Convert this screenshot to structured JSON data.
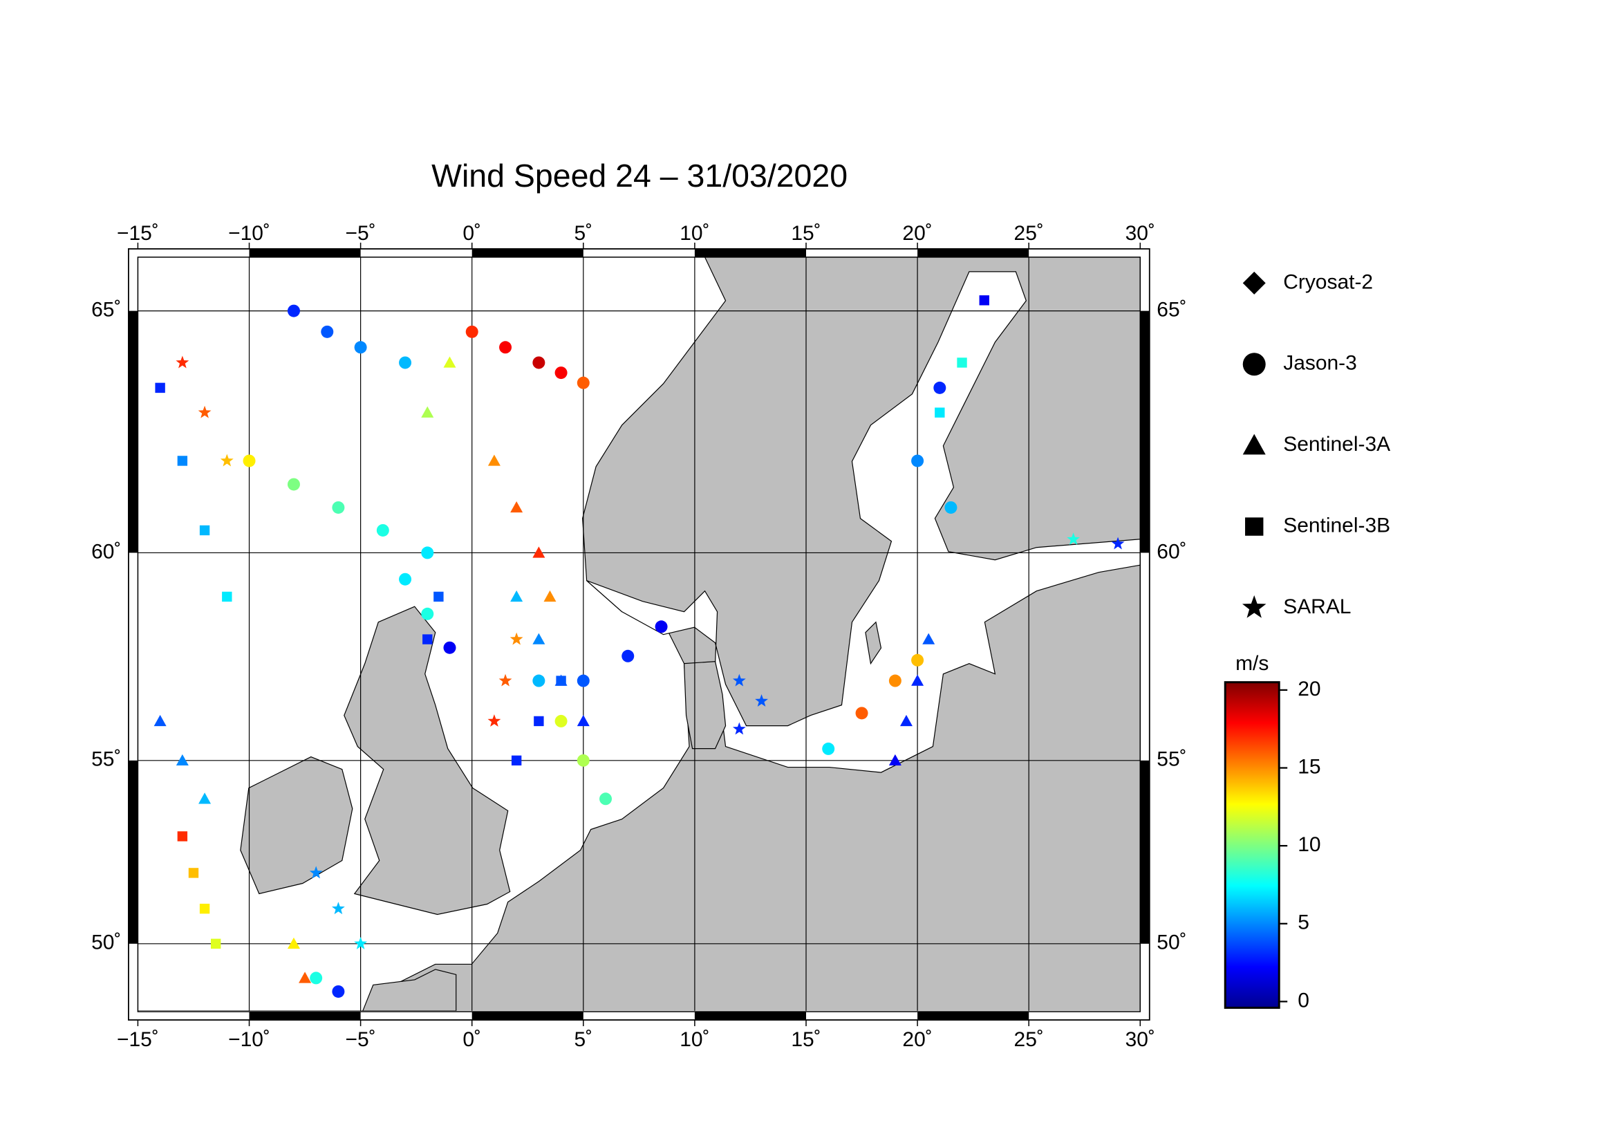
{
  "chart_data": {
    "type": "track-map",
    "title": "Wind Speed 24 – 31/03/2020",
    "projection": "mercator",
    "xlim": [
      -15,
      30
    ],
    "ylim": [
      48,
      66
    ],
    "xticks": [
      {
        "value": -15,
        "label": "−15˚"
      },
      {
        "value": -10,
        "label": "−10˚"
      },
      {
        "value": -5,
        "label": "−5˚"
      },
      {
        "value": 0,
        "label": "0˚"
      },
      {
        "value": 5,
        "label": "5˚"
      },
      {
        "value": 10,
        "label": "10˚"
      },
      {
        "value": 15,
        "label": "15˚"
      },
      {
        "value": 20,
        "label": "20˚"
      },
      {
        "value": 25,
        "label": "25˚"
      },
      {
        "value": 30,
        "label": "30˚"
      }
    ],
    "yticks": [
      {
        "value": 50,
        "label": "50˚"
      },
      {
        "value": 55,
        "label": "55˚"
      },
      {
        "value": 60,
        "label": "60˚"
      },
      {
        "value": 65,
        "label": "65˚"
      }
    ],
    "grid": true,
    "colormap": "jet",
    "colorbar_label": "m/s",
    "clim": [
      -0.4,
      20.5
    ],
    "cticks": [
      0,
      5,
      10,
      15,
      20
    ],
    "series": [
      {
        "name": "Cryosat-2",
        "marker": "diamond",
        "x": [],
        "y": [],
        "values": []
      },
      {
        "name": "Jason-3",
        "marker": "circle",
        "x": [
          0,
          1.5,
          3,
          4,
          5,
          -8,
          -6.5,
          -5,
          -3,
          5,
          7,
          8.5,
          21,
          20,
          21.5,
          16,
          17.5,
          19,
          20,
          -10,
          -8,
          -6,
          -4,
          -2,
          3,
          4,
          5,
          6,
          -7,
          -6,
          -1,
          -2,
          -3
        ],
        "y": [
          64.6,
          64.3,
          64,
          63.8,
          63.6,
          65,
          64.6,
          64.3,
          64,
          57,
          57.6,
          58.3,
          63.5,
          62,
          61,
          55.3,
          56.2,
          57,
          57.5,
          62,
          61.5,
          61,
          60.5,
          60,
          57,
          56,
          55,
          54,
          49,
          48.6,
          57.8,
          58.6,
          59.4
        ],
        "values": [
          17,
          18,
          19,
          18,
          16,
          3,
          4,
          5,
          6,
          4,
          3,
          2,
          3,
          5,
          6,
          7,
          16,
          15,
          14,
          13,
          10,
          9,
          8,
          7,
          6,
          12,
          11,
          9,
          8,
          3,
          2,
          8,
          7
        ]
      },
      {
        "name": "Sentinel-3A",
        "marker": "triangle",
        "x": [
          1,
          2,
          3,
          3.5,
          5,
          4,
          3,
          2,
          19,
          19.5,
          20,
          20.5,
          -14,
          -13,
          -12,
          -8,
          -7.5,
          -2,
          -1
        ],
        "y": [
          62,
          61,
          60,
          59,
          56,
          57,
          58,
          59,
          55,
          56,
          57,
          58,
          56,
          55,
          54,
          50,
          49,
          63,
          64
        ],
        "values": [
          15,
          16,
          17,
          15,
          3,
          4,
          5,
          6,
          2,
          3,
          3,
          4,
          4,
          5,
          6,
          13,
          16,
          11,
          12
        ]
      },
      {
        "name": "Sentinel-3B",
        "marker": "square",
        "x": [
          -14,
          -13,
          -12,
          -11,
          -13,
          -12.5,
          -12,
          -11.5,
          2,
          3,
          4,
          23,
          22,
          21,
          -2,
          -1.5
        ],
        "y": [
          63.5,
          62,
          60.5,
          59,
          53,
          52,
          51,
          50,
          55,
          56,
          57,
          65.2,
          64,
          63,
          58,
          59
        ],
        "values": [
          3,
          5,
          6,
          7,
          17,
          14,
          13,
          12,
          3,
          3,
          4,
          2,
          8,
          7,
          3,
          4
        ]
      },
      {
        "name": "SARAL",
        "marker": "star",
        "x": [
          -13,
          -12,
          -11,
          1,
          1.5,
          2,
          -7,
          -6,
          -5,
          12,
          13,
          12,
          29,
          27
        ],
        "y": [
          64,
          63,
          62,
          56,
          57,
          58,
          52,
          51,
          50,
          55.8,
          56.5,
          57,
          60.2,
          60.3
        ],
        "values": [
          17,
          16,
          14,
          17,
          16,
          15,
          5,
          6,
          7,
          3,
          4,
          4,
          3,
          8
        ]
      }
    ]
  }
}
